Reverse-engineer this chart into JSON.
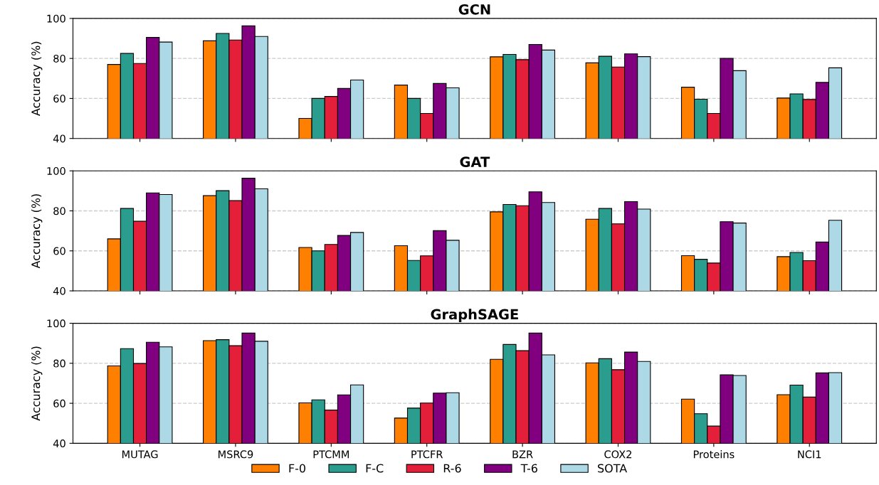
{
  "chart_data": [
    {
      "type": "bar",
      "title": "GCN",
      "ylabel": "Accuracy (%)",
      "categories": [
        null,
        null,
        null,
        null,
        null,
        null,
        null,
        null
      ],
      "ylim": [
        40,
        100
      ],
      "yticks": [
        40,
        60,
        80,
        100
      ],
      "grid": "y",
      "tick_labels": "y",
      "legend": "bottom",
      "series": [
        {
          "name": "F-0",
          "color": "#ff7f00",
          "values": [
            77,
            88.8,
            50,
            66.7,
            80.8,
            77.8,
            65.6,
            60.2
          ]
        },
        {
          "name": "F-C",
          "color": "#2a9d8f",
          "values": [
            82.5,
            92.5,
            60,
            60,
            82,
            81.1,
            59.6,
            62.3
          ]
        },
        {
          "name": "R-6",
          "color": "#e41f3a",
          "values": [
            77.5,
            89.2,
            61,
            52.5,
            79.4,
            75.7,
            52.5,
            59.5
          ]
        },
        {
          "name": "T-6",
          "color": "#800080",
          "values": [
            90.5,
            96.3,
            65,
            67.5,
            87,
            82.3,
            80,
            68
          ]
        },
        {
          "name": "SOTA",
          "color": "#add8e6",
          "values": [
            88.2,
            91,
            69.2,
            65.3,
            84.2,
            80.9,
            73.9,
            75.3
          ]
        }
      ]
    },
    {
      "type": "bar",
      "title": "GAT",
      "ylabel": "Accuracy (%)",
      "categories": [
        null,
        null,
        null,
        null,
        null,
        null,
        null,
        null
      ],
      "ylim": [
        40,
        100
      ],
      "yticks": [
        40,
        60,
        80,
        100
      ],
      "grid": "y",
      "tick_labels": "y",
      "series": [
        {
          "color": "#ff7f00",
          "values": [
            66,
            87.6,
            61.7,
            62.6,
            79.5,
            75.8,
            57.6,
            57.1
          ]
        },
        {
          "color": "#2a9d8f",
          "values": [
            81.2,
            90.1,
            60,
            55.2,
            83.2,
            81.2,
            55.8,
            59.2
          ]
        },
        {
          "color": "#e41f3a",
          "values": [
            74.8,
            85.1,
            63.2,
            57.5,
            82.6,
            73.5,
            53.9,
            55.1
          ]
        },
        {
          "color": "#800080",
          "values": [
            89,
            96.3,
            67.7,
            70.1,
            89.5,
            84.6,
            74.6,
            64.4
          ]
        },
        {
          "color": "#add8e6",
          "values": [
            88.2,
            91,
            69.2,
            65.3,
            84.2,
            80.9,
            73.9,
            75.3
          ]
        }
      ]
    },
    {
      "type": "bar",
      "title": "GraphSAGE",
      "ylabel": "Accuracy (%)",
      "categories": [
        "MUTAG",
        "MSRC9",
        "PTCMM",
        "PTCFR",
        "BZR",
        "COX2",
        "Proteins",
        "NCI1"
      ],
      "ylim": [
        40,
        100
      ],
      "yticks": [
        40,
        60,
        80,
        100
      ],
      "grid": "y",
      "series": [
        {
          "color": "#ff7f00",
          "values": [
            78.7,
            91.3,
            60.2,
            52.6,
            82,
            80.2,
            62.1,
            64.3
          ]
        },
        {
          "color": "#2a9d8f",
          "values": [
            87.3,
            91.8,
            61.7,
            57.6,
            89.4,
            82.3,
            54.8,
            69.1
          ]
        },
        {
          "color": "#e41f3a",
          "values": [
            79.9,
            88.8,
            56.6,
            60.1,
            86.3,
            76.8,
            48.6,
            63.1
          ]
        },
        {
          "color": "#800080",
          "values": [
            90.5,
            95.1,
            64.2,
            65.1,
            95.1,
            85.6,
            74.2,
            75.2
          ]
        },
        {
          "color": "#add8e6",
          "values": [
            88.2,
            91,
            69.2,
            65.3,
            84.2,
            80.9,
            73.9,
            75.3
          ]
        }
      ]
    }
  ]
}
